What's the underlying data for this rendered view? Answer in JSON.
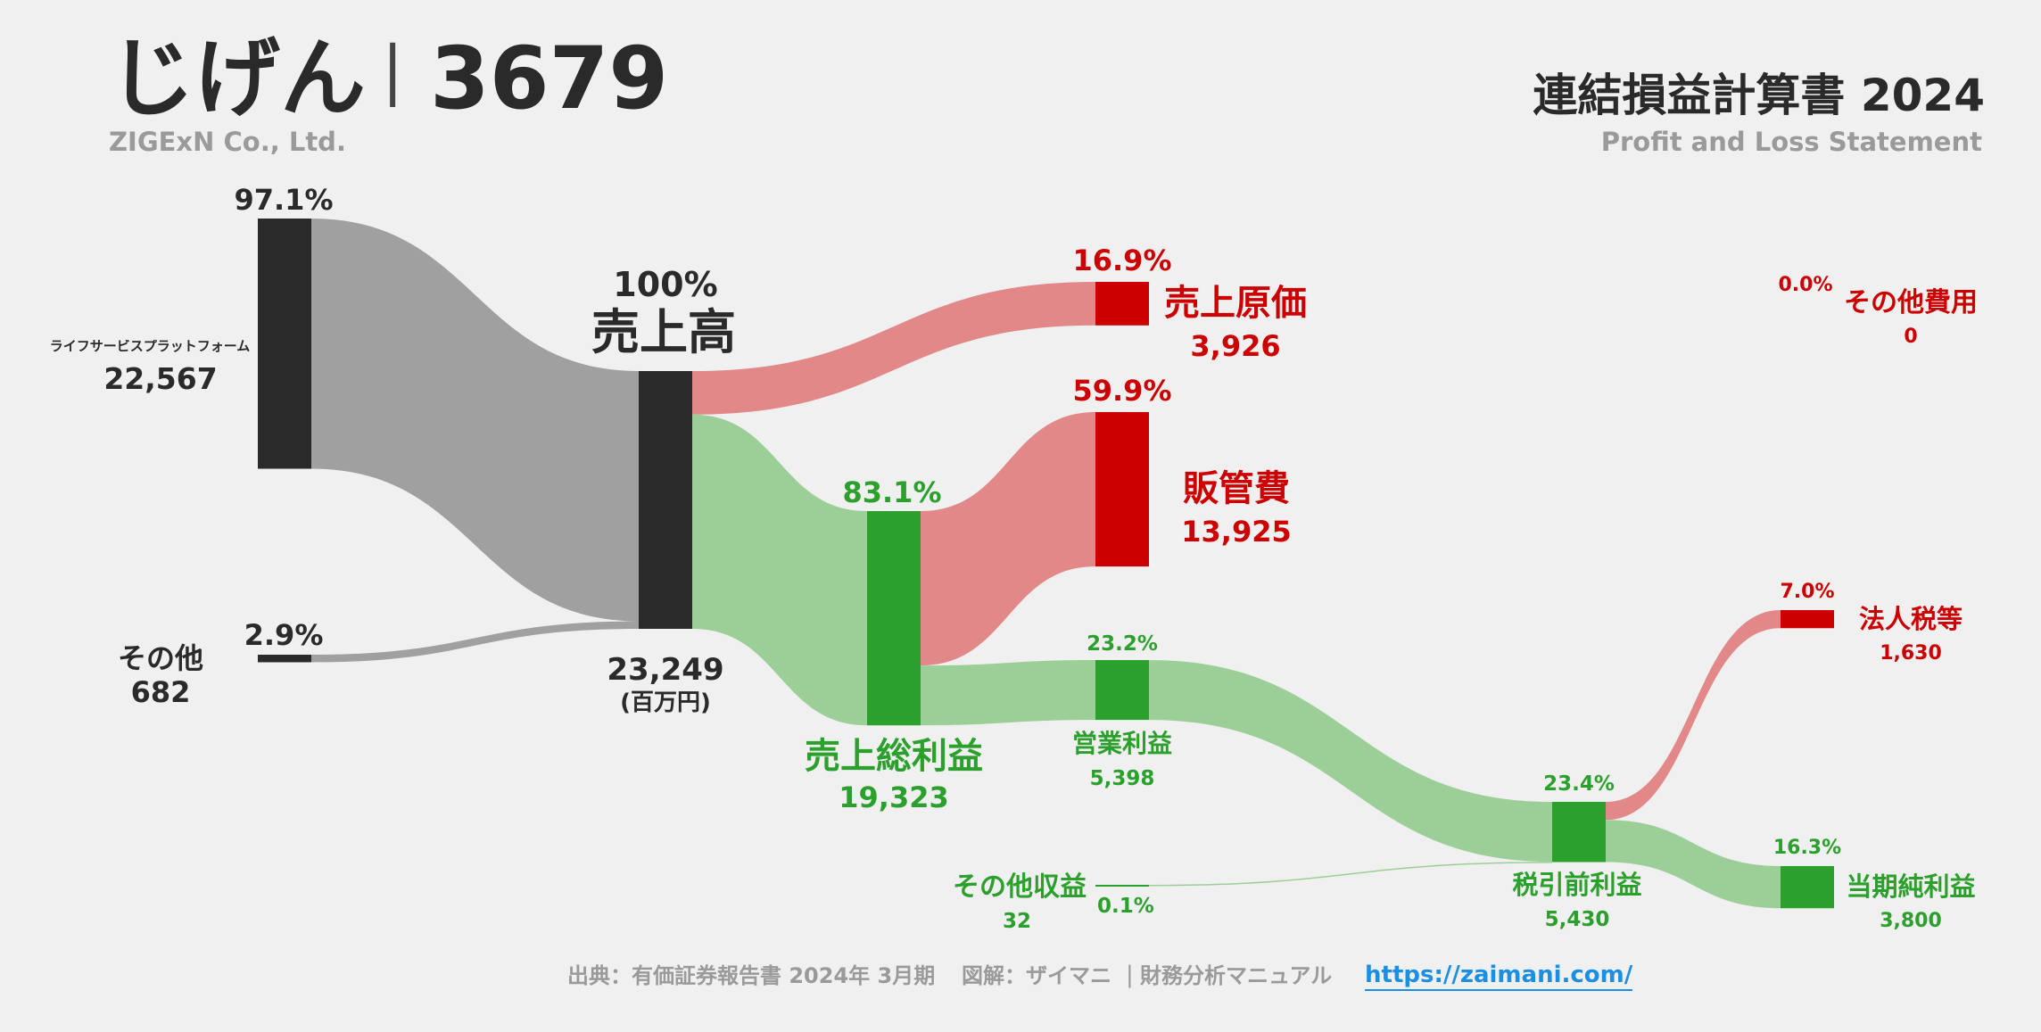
{
  "header": {
    "company_jp": "じげん",
    "separator": "|",
    "ticker": "3679",
    "company_en": "ZIGExN Co., Ltd.",
    "report_title": "連結損益計算書 2024",
    "report_subtitle": "Profit and Loss Statement"
  },
  "colors": {
    "node_dark": "#2a2a2a",
    "flow_gray": "#a0a0a0",
    "cost_red": "#cc0000",
    "cost_flow": "#e28888",
    "profit_green": "#2ca02c",
    "profit_flow": "#9ccf98"
  },
  "chart_data": {
    "type": "sankey",
    "unit": "(百万円)",
    "nodes": [
      {
        "id": "life",
        "label": "ライフサービスプラットフォーム",
        "value": 22567,
        "value_label": "22,567",
        "pct": "97.1%"
      },
      {
        "id": "other_rev",
        "label": "その他",
        "value": 682,
        "value_label": "682",
        "pct": "2.9%"
      },
      {
        "id": "revenue",
        "label": "売上高",
        "value": 23249,
        "value_label": "23,249",
        "pct": "100%"
      },
      {
        "id": "cogs",
        "label": "売上原価",
        "value": 3926,
        "value_label": "3,926",
        "pct": "16.9%"
      },
      {
        "id": "gross",
        "label": "売上総利益",
        "value": 19323,
        "value_label": "19,323",
        "pct": "83.1%"
      },
      {
        "id": "sga",
        "label": "販管費",
        "value": 13925,
        "value_label": "13,925",
        "pct": "59.9%"
      },
      {
        "id": "op",
        "label": "営業利益",
        "value": 5398,
        "value_label": "5,398",
        "pct": "23.2%"
      },
      {
        "id": "other_inc",
        "label": "その他収益",
        "value": 32,
        "value_label": "32",
        "pct": "0.1%"
      },
      {
        "id": "other_exp",
        "label": "その他費用",
        "value": 0,
        "value_label": "0",
        "pct": "0.0%"
      },
      {
        "id": "pretax",
        "label": "税引前利益",
        "value": 5430,
        "value_label": "5,430",
        "pct": "23.4%"
      },
      {
        "id": "tax",
        "label": "法人税等",
        "value": 1630,
        "value_label": "1,630",
        "pct": "7.0%"
      },
      {
        "id": "net",
        "label": "当期純利益",
        "value": 3800,
        "value_label": "3,800",
        "pct": "16.3%"
      }
    ],
    "links": [
      {
        "source": "life",
        "target": "revenue",
        "value": 22567
      },
      {
        "source": "other_rev",
        "target": "revenue",
        "value": 682
      },
      {
        "source": "revenue",
        "target": "cogs",
        "value": 3926
      },
      {
        "source": "revenue",
        "target": "gross",
        "value": 19323
      },
      {
        "source": "gross",
        "target": "sga",
        "value": 13925
      },
      {
        "source": "gross",
        "target": "op",
        "value": 5398
      },
      {
        "source": "op",
        "target": "pretax",
        "value": 5398
      },
      {
        "source": "other_inc",
        "target": "pretax",
        "value": 32
      },
      {
        "source": "pretax",
        "target": "tax",
        "value": 1630
      },
      {
        "source": "pretax",
        "target": "net",
        "value": 3800
      }
    ]
  },
  "footer": {
    "source": "出典：有価証券報告書 2024年 3月期",
    "credit": "図解：ザイマニ",
    "sep": "|",
    "site_name": "財務分析マニュアル",
    "url": "https://zaimani.com/"
  }
}
